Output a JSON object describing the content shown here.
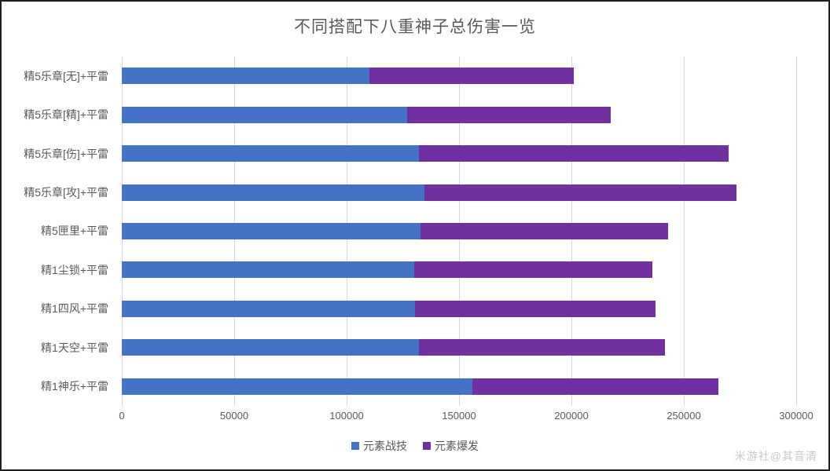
{
  "watermark": "米游社@其音清",
  "chart_data": {
    "type": "bar",
    "orientation": "horizontal",
    "stacked": true,
    "title": "不同搭配下八重神子总伤害一览",
    "categories": [
      "精5乐章[无]+平雷",
      "精5乐章[精]+平雷",
      "精5乐章[伤]+平雷",
      "精5乐章[攻]+平雷",
      "精5匣里+平雷",
      "精1尘锁+平雷",
      "精1四风+平雷",
      "精1天空+平雷",
      "精1神乐+平雷"
    ],
    "series": [
      {
        "name": "元素战技",
        "color": "#4472C4",
        "values": [
          110000,
          127000,
          132000,
          134500,
          133000,
          130000,
          130500,
          132000,
          156000
        ]
      },
      {
        "name": "元素爆发",
        "color": "#7030A0",
        "values": [
          91000,
          90500,
          138000,
          139000,
          110000,
          106000,
          107000,
          109500,
          109500
        ]
      }
    ],
    "totals": [
      201000,
      217500,
      270000,
      273500,
      243000,
      236000,
      237500,
      241500,
      265500
    ],
    "xlim": [
      0,
      300000
    ],
    "x_ticks": [
      0,
      50000,
      100000,
      150000,
      200000,
      250000,
      300000
    ],
    "x_tick_labels": [
      "0",
      "50000",
      "100000",
      "150000",
      "200000",
      "250000",
      "300000"
    ],
    "grid": "vertical",
    "legend_position": "bottom",
    "gridline_color": "#D9D9D9",
    "text_color": "#595959"
  }
}
